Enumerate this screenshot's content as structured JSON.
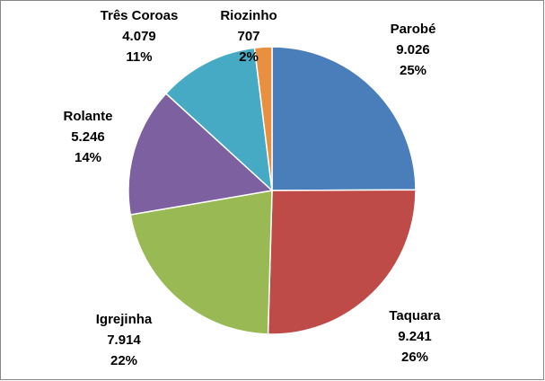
{
  "chart_data": {
    "type": "pie",
    "categories": [
      "Parobé",
      "Taquara",
      "Igrejinha",
      "Rolante",
      "Três Coroas",
      "Riozinho"
    ],
    "values": [
      9026,
      9241,
      7914,
      5246,
      4079,
      707
    ],
    "value_labels": [
      "9.026",
      "9.241",
      "7.914",
      "5.246",
      "4.079",
      "707"
    ],
    "percent_labels": [
      "25%",
      "26%",
      "22%",
      "14%",
      "11%",
      "2%"
    ],
    "colors": [
      "#4a7ebb",
      "#be4b48",
      "#98b954",
      "#7d60a0",
      "#46aac5",
      "#e8903f"
    ]
  }
}
